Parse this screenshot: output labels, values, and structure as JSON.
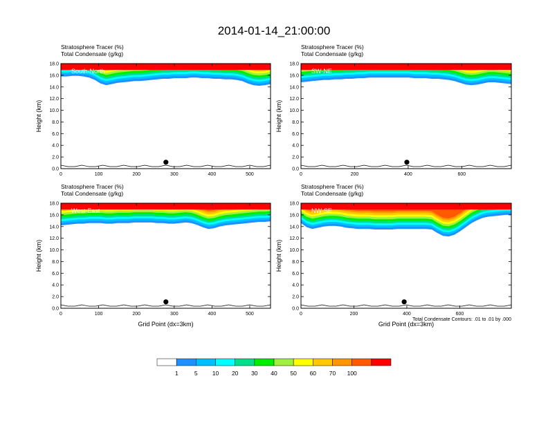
{
  "figure": {
    "title": "2014-01-14_21:00:00",
    "colorbar_labels": [
      "1",
      "5",
      "10",
      "20",
      "30",
      "40",
      "50",
      "60",
      "70",
      "100"
    ],
    "colorbar_colors": [
      "#ffffff",
      "#1e90ff",
      "#00bfff",
      "#00ffff",
      "#00e08a",
      "#00ee00",
      "#a0f040",
      "#ffff00",
      "#ffc800",
      "#ff9600",
      "#ff5a00",
      "#ff0000"
    ],
    "contour_note": "Total Condensate Contours: .01 to .01 by .000"
  },
  "chart_data": [
    {
      "type": "heatmap",
      "id": "south-north",
      "panel_label": "South-North",
      "title_line1": "Stratosphere Tracer   (%)",
      "title_line2": "Total Condensate   (g/kg)",
      "ylabel": "Height (km)",
      "xlabel": "",
      "xlim": [
        0,
        555
      ],
      "ylim": [
        0,
        18
      ],
      "xticks": [
        "0",
        "100",
        "200",
        "300",
        "400",
        "500"
      ],
      "xtick_values": [
        0,
        100,
        200,
        300,
        400,
        500
      ],
      "yticks": [
        "0.0",
        "2.0",
        "4.0",
        "6.0",
        "8.0",
        "10.0",
        "12.0",
        "14.0",
        "16.0",
        "18.0"
      ],
      "tracer_base_km": [
        15.8,
        15.8,
        15.9,
        15.9,
        15.8,
        15.6,
        15.2,
        14.6,
        14.3,
        14.5,
        14.7,
        14.8,
        14.9,
        15.0,
        15.0,
        15.1,
        15.2,
        15.3,
        15.4,
        15.4,
        15.5,
        15.5,
        15.5,
        15.6,
        15.6,
        15.5,
        15.5,
        15.4,
        15.4,
        15.3,
        15.3,
        15.2,
        15.0,
        14.6,
        14.3,
        14.2,
        14.3,
        14.5
      ],
      "marker_x": 278,
      "marker_y": 1.1
    },
    {
      "type": "heatmap",
      "id": "sw-ne",
      "panel_label": "SW-NE",
      "title_line1": "Stratosphere Tracer   (%)",
      "title_line2": "Total Condensate   (g/kg)",
      "ylabel": "Height (km)",
      "xlabel": "",
      "xlim": [
        0,
        785
      ],
      "ylim": [
        0,
        18
      ],
      "xticks": [
        "0",
        "200",
        "400",
        "600"
      ],
      "xtick_values": [
        0,
        200,
        400,
        600
      ],
      "yticks": [
        "0.0",
        "2.0",
        "4.0",
        "6.0",
        "8.0",
        "10.0",
        "12.0",
        "14.0",
        "16.0",
        "18.0"
      ],
      "tracer_base_km": [
        14.8,
        14.9,
        15.0,
        15.1,
        15.2,
        15.2,
        15.3,
        15.3,
        15.4,
        15.4,
        15.5,
        15.5,
        15.6,
        15.6,
        15.6,
        15.6,
        15.6,
        15.6,
        15.6,
        15.6,
        15.5,
        15.5,
        15.5,
        15.4,
        15.4,
        15.3,
        15.2,
        15.0,
        14.7,
        14.4,
        14.3,
        14.4,
        14.6,
        14.8,
        14.8,
        14.7,
        14.6,
        14.5
      ],
      "marker_x": 395,
      "marker_y": 1.1
    },
    {
      "type": "heatmap",
      "id": "west-east",
      "panel_label": "West-East",
      "title_line1": "Stratosphere Tracer   (%)",
      "title_line2": "Total Condensate   (g/kg)",
      "ylabel": "Height (km)",
      "xlabel": "Grid Point (dx=3km)",
      "xlim": [
        0,
        555
      ],
      "ylim": [
        0,
        18
      ],
      "xticks": [
        "0",
        "100",
        "200",
        "300",
        "400",
        "500"
      ],
      "xtick_values": [
        0,
        100,
        200,
        300,
        400,
        500
      ],
      "yticks": [
        "0.0",
        "2.0",
        "4.0",
        "6.0",
        "8.0",
        "10.0",
        "12.0",
        "14.0",
        "16.0",
        "18.0"
      ],
      "tracer_base_km": [
        14.2,
        14.3,
        14.4,
        14.5,
        14.5,
        14.6,
        14.6,
        14.6,
        14.5,
        14.5,
        14.6,
        14.6,
        14.6,
        14.7,
        14.7,
        14.7,
        14.7,
        14.6,
        14.6,
        14.5,
        14.5,
        14.6,
        14.7,
        14.6,
        14.3,
        13.9,
        13.6,
        13.7,
        14.0,
        14.2,
        14.3,
        14.4,
        14.5,
        14.6,
        14.7,
        14.8,
        14.8,
        14.9
      ],
      "marker_x": 278,
      "marker_y": 1.1
    },
    {
      "type": "heatmap",
      "id": "nw-se",
      "panel_label": "NW-SE",
      "title_line1": "Stratosphere Tracer   (%)",
      "title_line2": "Total Condensate   (g/kg)",
      "ylabel": "Height (km)",
      "xlabel": "Grid Point (dx=3km)",
      "xlim": [
        0,
        795
      ],
      "ylim": [
        0,
        18
      ],
      "xticks": [
        "0",
        "200",
        "400",
        "600"
      ],
      "xtick_values": [
        0,
        200,
        400,
        600
      ],
      "yticks": [
        "0.0",
        "2.0",
        "4.0",
        "6.0",
        "8.0",
        "10.0",
        "12.0",
        "14.0",
        "16.0",
        "18.0"
      ],
      "tracer_base_km": [
        14.6,
        13.9,
        13.6,
        13.8,
        14.0,
        14.1,
        14.1,
        14.0,
        13.8,
        13.7,
        13.6,
        13.6,
        13.6,
        13.5,
        13.5,
        13.5,
        13.5,
        13.6,
        13.6,
        13.6,
        13.6,
        13.6,
        13.6,
        13.5,
        12.9,
        12.4,
        12.3,
        12.6,
        13.2,
        13.9,
        14.6,
        15.1,
        15.5,
        15.7,
        15.8,
        15.9,
        16.0,
        16.0
      ],
      "marker_x": 390,
      "marker_y": 1.1
    }
  ]
}
